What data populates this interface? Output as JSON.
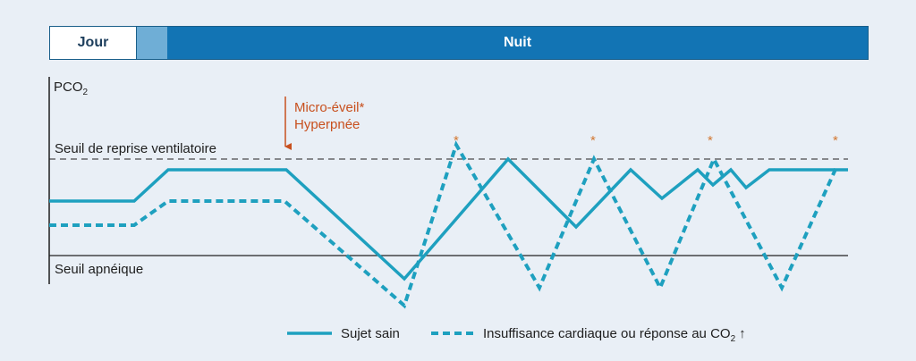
{
  "timeline": {
    "day": "Jour",
    "night": "Nuit"
  },
  "axis": {
    "y_label": "PCO",
    "y_label_sub": "2"
  },
  "thresholds": {
    "upper": "Seuil de reprise ventilatoire",
    "lower": "Seuil apnéique"
  },
  "annotation": {
    "line1": "Micro-éveil*",
    "line2": "Hyperpnée"
  },
  "star_marker": "*",
  "legend": {
    "solid": "Sujet sain",
    "dashed_prefix": "Insuffisance cardiaque ou réponse au CO",
    "dashed_sub": "2",
    "dashed_arrow": "↑"
  },
  "colors": {
    "curve": "#1ea0bf",
    "annotation": "#c8501e",
    "star": "#d27832",
    "night": "#1274b4",
    "dusk": "#6faed6"
  }
}
